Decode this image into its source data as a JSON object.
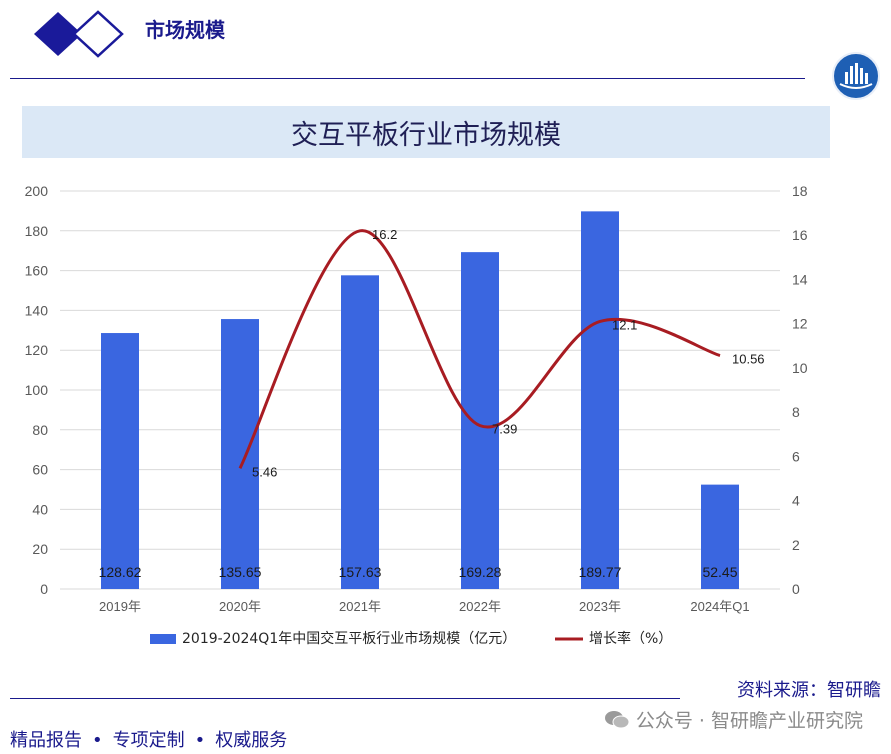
{
  "header": {
    "title": "市场规模"
  },
  "chart_title": "交互平板行业市场规模",
  "source": "资料来源：智研瞻",
  "footer": {
    "items": [
      "精品报告",
      "专项定制",
      "权威服务"
    ],
    "watermark": "公众号 · 智研瞻产业研究院"
  },
  "colors": {
    "bar": "#3a66e0",
    "line": "#a81c22",
    "navy": "#1a1a8c",
    "band": "#dbe8f6"
  },
  "icons": {
    "logo": "double-diamond-logo",
    "brand": "city-skyline-badge",
    "watermark": "wechat-icon"
  },
  "chart_data": {
    "type": "bar",
    "title": "交互平板行业市场规模",
    "categories": [
      "2019年",
      "2020年",
      "2021年",
      "2022年",
      "2023年",
      "2024年Q1"
    ],
    "series": [
      {
        "name": "2019-2024Q1年中国交互平板行业市场规模（亿元）",
        "kind": "bar",
        "axis": "left",
        "values": [
          128.62,
          135.65,
          157.63,
          169.28,
          189.77,
          52.45
        ],
        "labels": [
          "128.62",
          "135.65",
          "157.63",
          "169.28",
          "189.77",
          "52.45"
        ]
      },
      {
        "name": "增长率（%）",
        "kind": "line",
        "axis": "right",
        "values": [
          null,
          5.46,
          16.2,
          7.39,
          12.1,
          10.56
        ],
        "labels": [
          "",
          "5.46",
          "16.2",
          "7.39",
          "12.1",
          "10.56"
        ]
      }
    ],
    "y_left": {
      "min": 0,
      "max": 200,
      "ticks": [
        "0",
        "20",
        "40",
        "60",
        "80",
        "100",
        "120",
        "140",
        "160",
        "180",
        "200"
      ]
    },
    "y_right": {
      "min": 0,
      "max": 18,
      "ticks": [
        "0",
        "2",
        "4",
        "6",
        "8",
        "10",
        "12",
        "14",
        "16",
        "18"
      ]
    },
    "grid": true,
    "legend_position": "bottom"
  }
}
